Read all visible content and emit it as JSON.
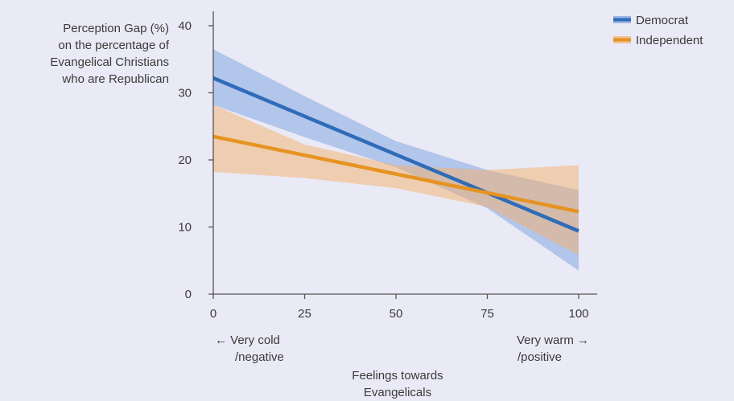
{
  "chart_data": {
    "type": "line",
    "ylabel": [
      "Perception Gap (%)",
      "on the percentage of",
      "Evangelical Christians",
      "who are Republican"
    ],
    "xlabel": [
      "Feelings towards",
      "Evangelicals"
    ],
    "x_annotations": {
      "left": [
        "← Very cold",
        "/negative"
      ],
      "right": [
        "Very warm →",
        "/positive"
      ]
    },
    "xlim": [
      0,
      100
    ],
    "ylim": [
      0,
      40
    ],
    "xticks": [
      0,
      25,
      50,
      75,
      100
    ],
    "yticks": [
      0,
      10,
      20,
      30,
      40
    ],
    "grid": false,
    "legend_position": "top-right",
    "series": [
      {
        "name": "Democrat",
        "color": "#2f6cb8",
        "band_color": "#7a9fe0",
        "x": [
          0,
          100
        ],
        "y": [
          32.2,
          9.4
        ],
        "ci_x": [
          0,
          25,
          50,
          75,
          100
        ],
        "ci_lower": [
          28.2,
          23.4,
          18.9,
          12.8,
          3.5
        ],
        "ci_upper": [
          36.5,
          29.5,
          22.8,
          18.5,
          15.5
        ]
      },
      {
        "name": "Independent",
        "color": "#e69322",
        "band_color": "#f3b06a",
        "x": [
          0,
          100
        ],
        "y": [
          23.5,
          12.3
        ],
        "ci_x": [
          0,
          25,
          50,
          75,
          100
        ],
        "ci_lower": [
          18.2,
          17.3,
          15.8,
          13.0,
          5.8
        ],
        "ci_upper": [
          28.2,
          22.3,
          19.2,
          18.5,
          19.2
        ]
      }
    ]
  }
}
